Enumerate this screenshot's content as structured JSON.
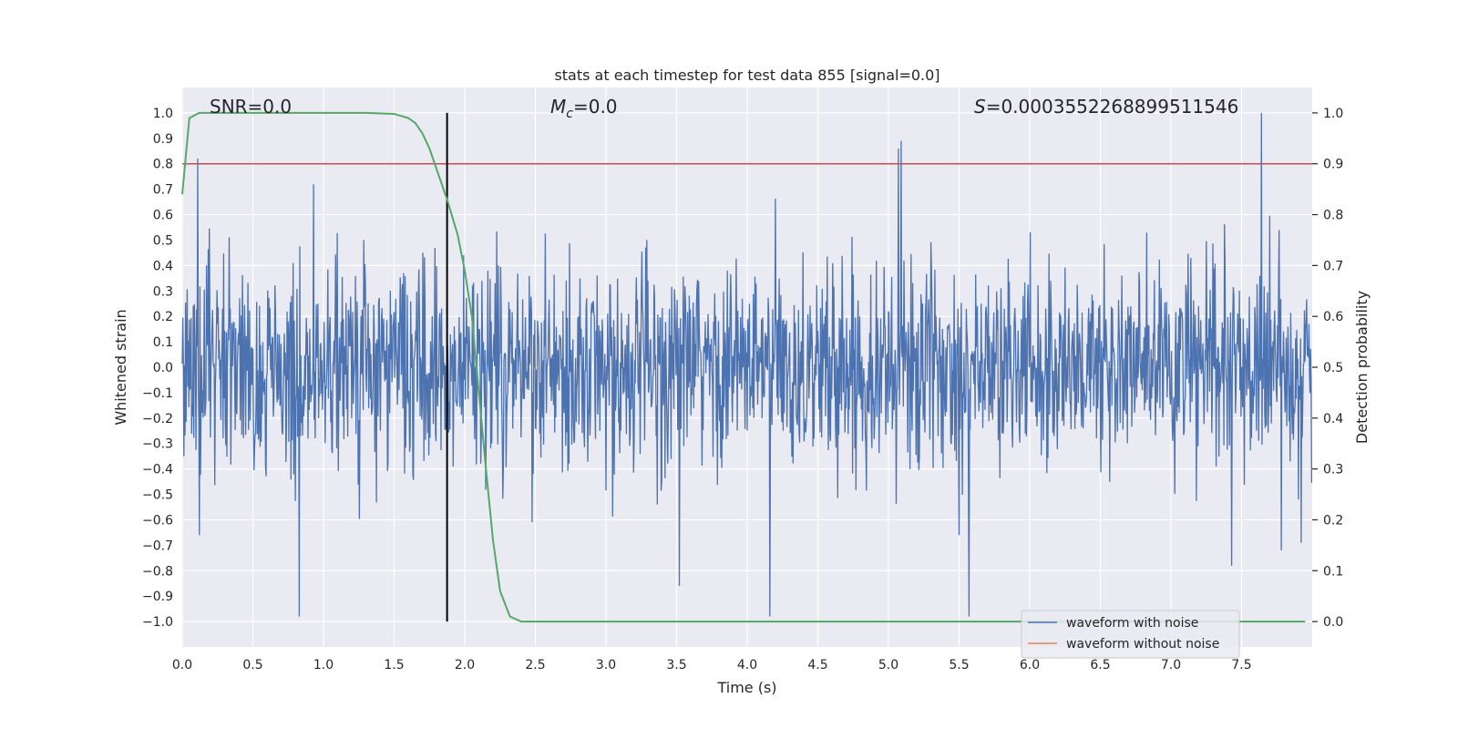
{
  "chart_data": {
    "type": "line",
    "title": "stats at each timestep for test data 855 [signal=0.0]",
    "xlabel": "Time (s)",
    "ylabel_left": "Whitened strain",
    "ylabel_right": "Detection probability",
    "xlim": [
      0.0,
      8.0
    ],
    "ylim_left": [
      -1.1,
      1.1
    ],
    "ylim_right": [
      -0.05,
      1.05
    ],
    "x_ticks": [
      "0.0",
      "0.5",
      "1.0",
      "1.5",
      "2.0",
      "2.5",
      "3.0",
      "3.5",
      "4.0",
      "4.5",
      "5.0",
      "5.5",
      "6.0",
      "6.5",
      "7.0",
      "7.5"
    ],
    "y_left_ticks": [
      "1.0",
      "0.9",
      "0.8",
      "0.7",
      "0.6",
      "0.5",
      "0.4",
      "0.3",
      "0.2",
      "0.1",
      "0.0",
      "−0.1",
      "−0.2",
      "−0.3",
      "−0.4",
      "−0.5",
      "−0.6",
      "−0.7",
      "−0.8",
      "−0.9",
      "−1.0"
    ],
    "y_right_ticks": [
      "1.0",
      "0.9",
      "0.8",
      "0.7",
      "0.6",
      "0.5",
      "0.4",
      "0.3",
      "0.2",
      "0.1",
      "0.0"
    ],
    "annotations": {
      "snr": "SNR=0.0",
      "mc_symbol": "M",
      "mc_sub": "c",
      "mc_value": "=0.0",
      "s_symbol": "S",
      "s_value": "=0.0003552268899511546"
    },
    "threshold": {
      "value": 0.9,
      "axis": "right",
      "color": "#c44e52"
    },
    "vertical_marker": {
      "x": 1.875,
      "y_range": [
        -1.0,
        1.0
      ],
      "color": "#000000"
    },
    "series": [
      {
        "name": "waveform with noise",
        "axis": "left",
        "color": "#4c72b0",
        "kind": "noise",
        "sample_rate": 256,
        "typical_amplitude": 0.2,
        "peak_amplitude": 1.0,
        "peaks": [
          {
            "x": 0.11,
            "y": 0.82
          },
          {
            "x": 0.12,
            "y": -0.66
          },
          {
            "x": 0.83,
            "y": -0.98
          },
          {
            "x": 0.93,
            "y": 0.72
          },
          {
            "x": 3.52,
            "y": -0.86
          },
          {
            "x": 4.16,
            "y": -0.98
          },
          {
            "x": 5.09,
            "y": 0.89
          },
          {
            "x": 5.07,
            "y": 0.86
          },
          {
            "x": 5.57,
            "y": -0.98
          },
          {
            "x": 7.64,
            "y": 1.0
          },
          {
            "x": 7.43,
            "y": -0.78
          },
          {
            "x": 7.92,
            "y": -0.69
          }
        ]
      },
      {
        "name": "waveform without noise",
        "axis": "left",
        "color": "#dd8452",
        "values": []
      },
      {
        "name": "detection probability",
        "axis": "right",
        "color": "#55a868",
        "x": [
          0.0,
          0.05,
          0.12,
          0.3,
          0.6,
          1.0,
          1.3,
          1.5,
          1.6,
          1.65,
          1.7,
          1.75,
          1.8,
          1.875,
          1.95,
          2.0,
          2.05,
          2.1,
          2.15,
          2.2,
          2.25,
          2.32,
          2.4,
          2.6,
          3.0,
          4.0,
          5.0,
          6.0,
          7.0,
          7.95
        ],
        "y": [
          0.84,
          0.99,
          1.0,
          1.0,
          1.0,
          1.0,
          1.0,
          0.998,
          0.99,
          0.98,
          0.96,
          0.93,
          0.89,
          0.83,
          0.76,
          0.69,
          0.6,
          0.45,
          0.3,
          0.16,
          0.06,
          0.01,
          0.0,
          0.0,
          0.0,
          0.0,
          0.0,
          0.0,
          0.0,
          0.0
        ]
      }
    ],
    "legend": {
      "position": "lower-right",
      "entries": [
        {
          "label": "waveform with noise",
          "color": "#4c72b0"
        },
        {
          "label": "waveform without noise",
          "color": "#dd8452"
        }
      ]
    },
    "style": {
      "background": "#eaeaf2",
      "grid": "#ffffff"
    }
  }
}
